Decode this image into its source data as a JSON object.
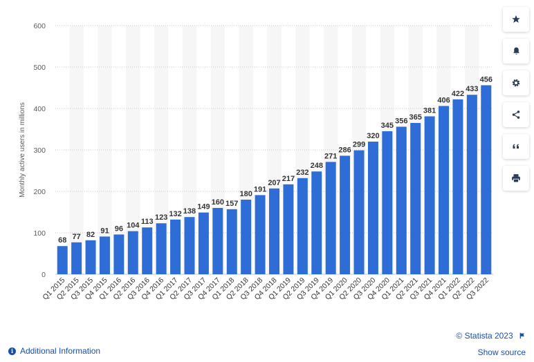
{
  "chart_data": {
    "type": "bar",
    "ylabel": "Monthly active users in millions",
    "ylim": [
      0,
      600
    ],
    "yticks": [
      0,
      100,
      200,
      300,
      400,
      500,
      600
    ],
    "grid": true,
    "bar_color": "#2f6dd6",
    "categories": [
      "Q1 2015",
      "Q2 2015",
      "Q3 2015",
      "Q4 2015",
      "Q1 2016",
      "Q2 2016",
      "Q3 2016",
      "Q4 2016",
      "Q1 2017",
      "Q2 2017",
      "Q3 2017",
      "Q4 2017",
      "Q1 2018",
      "Q2 2018",
      "Q3 2018",
      "Q4 2018",
      "Q1 2019",
      "Q2 2019",
      "Q3 2019",
      "Q4 2019",
      "Q1 2020",
      "Q2 2020",
      "Q3 2020",
      "Q4 2020",
      "Q1 2021",
      "Q2 2021",
      "Q3 2021",
      "Q4 2021",
      "Q1 2022",
      "Q2 2022",
      "Q3 2022"
    ],
    "values": [
      68,
      77,
      82,
      91,
      96,
      104,
      113,
      123,
      132,
      138,
      149,
      160,
      157,
      180,
      191,
      207,
      217,
      232,
      248,
      271,
      286,
      299,
      320,
      345,
      356,
      365,
      381,
      406,
      422,
      433,
      456
    ]
  },
  "sidebar": {
    "icons": [
      "star-icon",
      "bell-icon",
      "gear-icon",
      "share-icon",
      "quote-icon",
      "print-icon"
    ]
  },
  "footer": {
    "copyright": "© Statista 2023",
    "show_source": "Show source",
    "additional_info": "Additional Information"
  }
}
